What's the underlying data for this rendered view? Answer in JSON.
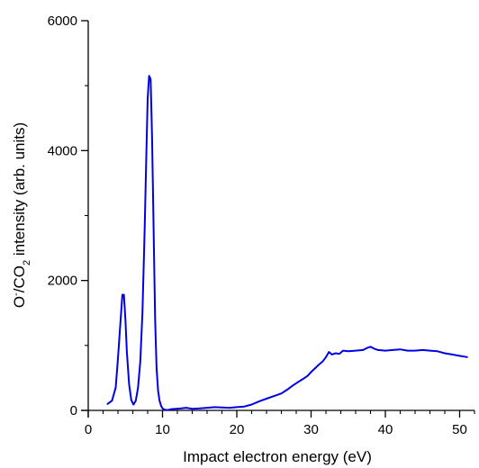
{
  "chart_data": {
    "type": "line",
    "title": "",
    "xlabel": "Impact electron energy (eV)",
    "ylabel": {
      "parts": [
        "O",
        "-",
        "/CO",
        "2",
        " intensity (arb. units)"
      ],
      "full": "O-/CO2 intensity (arb. units)"
    },
    "xlim": [
      0,
      52
    ],
    "ylim": [
      0,
      6000
    ],
    "x_ticks": [
      0,
      10,
      20,
      30,
      40,
      50
    ],
    "x_tick_labels": [
      "0",
      "10",
      "20",
      "30",
      "40",
      "50"
    ],
    "y_ticks": [
      0,
      2000,
      4000,
      6000
    ],
    "y_tick_labels": [
      "0",
      "2000",
      "4000",
      "6000"
    ],
    "grid": false,
    "legend": "none",
    "series": [
      {
        "color": "#0000e6",
        "x": [
          2.6,
          3.2,
          3.7,
          4.0,
          4.3,
          4.6,
          4.8,
          5.0,
          5.2,
          5.5,
          5.8,
          6.1,
          6.4,
          6.7,
          7.0,
          7.3,
          7.6,
          7.8,
          8.0,
          8.2,
          8.4,
          8.6,
          8.8,
          9.0,
          9.2,
          9.4,
          9.6,
          9.8,
          10.0,
          10.3,
          10.7,
          11.2,
          11.8,
          12.5,
          13.2,
          14.0,
          15.0,
          16.0,
          17.0,
          18.0,
          19.0,
          20.0,
          21.0,
          22.0,
          23.0,
          24.0,
          25.0,
          26.0,
          26.8,
          27.5,
          28.3,
          29.0,
          29.5,
          30.0,
          31.0,
          31.6,
          32.0,
          32.4,
          32.8,
          33.3,
          33.8,
          34.3,
          35.0,
          36.0,
          37.0,
          37.5,
          38.0,
          38.5,
          39.0,
          40.0,
          41.0,
          42.0,
          43.0,
          44.0,
          45.0,
          46.0,
          47.0,
          48.0,
          49.0,
          50.0,
          51.0
        ],
        "y": [
          100,
          150,
          350,
          800,
          1300,
          1780,
          1780,
          1400,
          900,
          400,
          160,
          90,
          150,
          350,
          750,
          1500,
          2800,
          3800,
          4800,
          5150,
          5100,
          4200,
          2800,
          1400,
          650,
          300,
          150,
          70,
          30,
          10,
          5,
          20,
          25,
          30,
          40,
          25,
          30,
          40,
          50,
          45,
          40,
          50,
          60,
          90,
          140,
          180,
          220,
          260,
          320,
          380,
          440,
          490,
          530,
          590,
          700,
          760,
          820,
          900,
          860,
          880,
          870,
          920,
          910,
          920,
          930,
          960,
          980,
          950,
          930,
          920,
          930,
          940,
          920,
          920,
          930,
          920,
          910,
          880,
          860,
          840,
          820
        ]
      }
    ]
  }
}
